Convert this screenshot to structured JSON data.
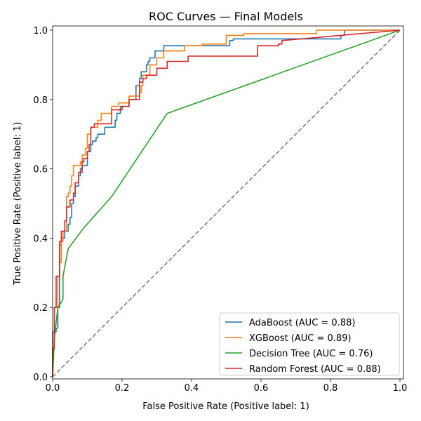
{
  "chart_data": {
    "type": "line",
    "title": "ROC Curves — Final Models",
    "xlabel": "False Positive Rate (Positive label: 1)",
    "ylabel": "True Positive Rate (Positive label: 1)",
    "xlim": [
      0,
      1
    ],
    "ylim": [
      0,
      1
    ],
    "xticks": [
      "0.0",
      "0.2",
      "0.4",
      "0.6",
      "0.8",
      "1.0"
    ],
    "yticks": [
      "0.0",
      "0.2",
      "0.4",
      "0.6",
      "0.8",
      "1.0"
    ],
    "grid": false,
    "legend_position": "lower-right",
    "chance_line": {
      "x": [
        0,
        1
      ],
      "y": [
        0,
        1
      ],
      "color": "#808080",
      "style": "dashed"
    },
    "series": [
      {
        "name": "AdaBoost (AUC = 0.88)",
        "color": "#1f77b4",
        "x": [
          0,
          0,
          0.01,
          0.01,
          0.015,
          0.015,
          0.02,
          0.02,
          0.025,
          0.025,
          0.035,
          0.035,
          0.045,
          0.045,
          0.05,
          0.05,
          0.055,
          0.055,
          0.06,
          0.06,
          0.065,
          0.065,
          0.075,
          0.075,
          0.08,
          0.08,
          0.085,
          0.085,
          0.1,
          0.1,
          0.11,
          0.11,
          0.115,
          0.115,
          0.125,
          0.125,
          0.13,
          0.13,
          0.15,
          0.15,
          0.18,
          0.18,
          0.185,
          0.185,
          0.195,
          0.195,
          0.22,
          0.22,
          0.24,
          0.24,
          0.25,
          0.25,
          0.255,
          0.255,
          0.27,
          0.27,
          0.275,
          0.275,
          0.28,
          0.28,
          0.295,
          0.295,
          0.32,
          0.32,
          0.51,
          0.51,
          0.52,
          0.52,
          0.65,
          0.65,
          0.83,
          0.83,
          0.84,
          0.84,
          1.0
        ],
        "y": [
          0,
          0.13,
          0.13,
          0.14,
          0.14,
          0.2,
          0.2,
          0.38,
          0.38,
          0.4,
          0.4,
          0.42,
          0.42,
          0.44,
          0.44,
          0.46,
          0.46,
          0.5,
          0.5,
          0.52,
          0.52,
          0.55,
          0.55,
          0.58,
          0.58,
          0.6,
          0.6,
          0.61,
          0.61,
          0.65,
          0.65,
          0.67,
          0.67,
          0.68,
          0.68,
          0.69,
          0.69,
          0.7,
          0.7,
          0.72,
          0.72,
          0.74,
          0.74,
          0.76,
          0.76,
          0.78,
          0.78,
          0.8,
          0.8,
          0.84,
          0.84,
          0.86,
          0.86,
          0.88,
          0.88,
          0.9,
          0.9,
          0.91,
          0.91,
          0.92,
          0.92,
          0.94,
          0.94,
          0.955,
          0.955,
          0.97,
          0.97,
          0.975,
          0.975,
          0.975,
          0.975,
          0.985,
          0.985,
          1.0,
          1.0
        ]
      },
      {
        "name": "XGBoost (AUC = 0.89)",
        "color": "#ff7f0e",
        "x": [
          0,
          0,
          0.005,
          0.005,
          0.015,
          0.015,
          0.02,
          0.02,
          0.025,
          0.025,
          0.03,
          0.03,
          0.04,
          0.04,
          0.045,
          0.045,
          0.05,
          0.05,
          0.055,
          0.055,
          0.06,
          0.06,
          0.08,
          0.08,
          0.085,
          0.085,
          0.095,
          0.095,
          0.1,
          0.1,
          0.11,
          0.11,
          0.13,
          0.13,
          0.14,
          0.14,
          0.17,
          0.17,
          0.19,
          0.19,
          0.22,
          0.22,
          0.25,
          0.25,
          0.255,
          0.255,
          0.26,
          0.26,
          0.28,
          0.28,
          0.3,
          0.3,
          0.32,
          0.32,
          0.38,
          0.38,
          0.43,
          0.43,
          0.5,
          0.5,
          0.55,
          0.55,
          0.76,
          0.76,
          1.0
        ],
        "y": [
          0,
          0.1,
          0.1,
          0.2,
          0.2,
          0.29,
          0.29,
          0.33,
          0.33,
          0.39,
          0.39,
          0.42,
          0.42,
          0.52,
          0.52,
          0.53,
          0.53,
          0.55,
          0.55,
          0.58,
          0.58,
          0.61,
          0.61,
          0.62,
          0.62,
          0.64,
          0.64,
          0.66,
          0.66,
          0.7,
          0.7,
          0.72,
          0.72,
          0.74,
          0.74,
          0.76,
          0.76,
          0.78,
          0.78,
          0.79,
          0.79,
          0.81,
          0.81,
          0.82,
          0.82,
          0.84,
          0.84,
          0.87,
          0.87,
          0.9,
          0.9,
          0.92,
          0.92,
          0.94,
          0.94,
          0.955,
          0.955,
          0.96,
          0.96,
          0.985,
          0.985,
          0.99,
          0.99,
          1.0,
          1.0
        ]
      },
      {
        "name": "Decision Tree (AUC = 0.76)",
        "color": "#2ca02c",
        "x": [
          0,
          0.005,
          0.015,
          0.025,
          0.03,
          0.03,
          0.045,
          0.09,
          0.17,
          0.33,
          1.0
        ],
        "y": [
          0,
          0.11,
          0.2,
          0.215,
          0.225,
          0.29,
          0.37,
          0.43,
          0.52,
          0.76,
          1.0
        ]
      },
      {
        "name": "Random Forest (AUC = 0.88)",
        "color": "#d62728",
        "x": [
          0,
          0,
          0.005,
          0.005,
          0.01,
          0.01,
          0.02,
          0.02,
          0.025,
          0.025,
          0.035,
          0.035,
          0.04,
          0.04,
          0.05,
          0.05,
          0.06,
          0.06,
          0.065,
          0.065,
          0.075,
          0.075,
          0.085,
          0.085,
          0.09,
          0.09,
          0.1,
          0.1,
          0.105,
          0.105,
          0.11,
          0.11,
          0.12,
          0.12,
          0.17,
          0.17,
          0.2,
          0.2,
          0.22,
          0.22,
          0.25,
          0.25,
          0.26,
          0.26,
          0.27,
          0.27,
          0.3,
          0.3,
          0.33,
          0.33,
          0.39,
          0.39,
          0.59,
          0.59,
          0.65,
          0.65,
          0.66,
          0.66,
          1.0
        ],
        "y": [
          0,
          0.08,
          0.08,
          0.2,
          0.2,
          0.29,
          0.29,
          0.39,
          0.39,
          0.42,
          0.42,
          0.45,
          0.45,
          0.49,
          0.49,
          0.51,
          0.51,
          0.53,
          0.53,
          0.56,
          0.56,
          0.59,
          0.59,
          0.62,
          0.62,
          0.63,
          0.63,
          0.65,
          0.65,
          0.67,
          0.67,
          0.72,
          0.72,
          0.73,
          0.73,
          0.77,
          0.77,
          0.78,
          0.78,
          0.8,
          0.8,
          0.85,
          0.85,
          0.86,
          0.86,
          0.87,
          0.87,
          0.89,
          0.89,
          0.91,
          0.91,
          0.925,
          0.925,
          0.955,
          0.955,
          0.96,
          0.96,
          0.97,
          1.0
        ]
      }
    ]
  }
}
